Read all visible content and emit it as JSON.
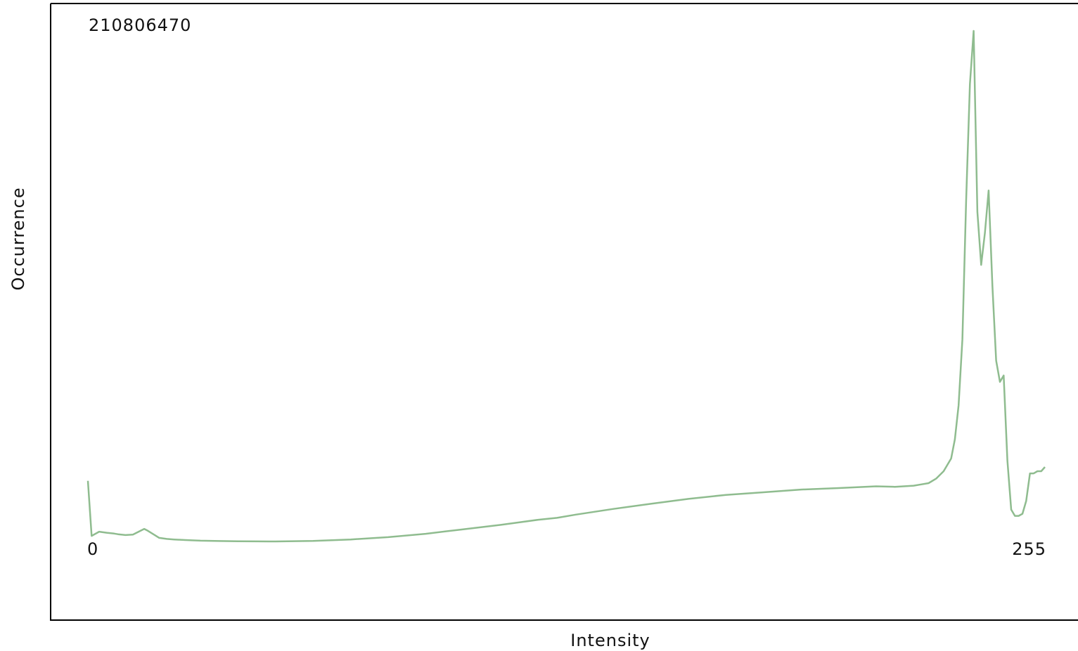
{
  "chart_data": {
    "type": "line",
    "xlabel": "Intensity",
    "ylabel": "Occurrence",
    "y_max_label": "210806470",
    "x_min_label": "0",
    "x_max_label": "255",
    "xlim": [
      0,
      255
    ],
    "ylim": [
      0,
      210806470
    ],
    "grid": false,
    "line_color": "#8fbc8f",
    "series": [
      {
        "x": [
          0,
          1,
          3,
          5,
          7,
          8,
          10,
          12,
          15,
          16,
          19,
          21,
          23,
          24,
          26,
          30,
          35,
          40,
          45,
          50,
          60,
          70,
          80,
          90,
          100,
          110,
          115,
          120,
          125,
          130,
          140,
          150,
          160,
          170,
          180,
          190,
          200,
          210,
          215,
          220,
          222,
          224,
          226,
          228,
          230,
          231,
          232,
          233,
          234,
          235,
          236,
          237,
          238,
          239,
          240,
          241,
          242,
          243,
          244,
          245,
          246,
          247,
          248,
          249,
          250,
          251,
          252,
          253,
          254,
          255
        ],
        "y": [
          28500000,
          2600000,
          4600000,
          4100000,
          3700000,
          3400000,
          3000000,
          3200000,
          5900000,
          5000000,
          1700000,
          1200000,
          930000,
          820000,
          660000,
          370000,
          210000,
          80000,
          25000,
          5000,
          280000,
          930000,
          2000000,
          3600000,
          5700000,
          7800000,
          9000000,
          10200000,
          11100000,
          12600000,
          15300000,
          17700000,
          20000000,
          21900000,
          23100000,
          24400000,
          25100000,
          25900000,
          25700000,
          26200000,
          26800000,
          27400000,
          29500000,
          33000000,
          39000000,
          48000000,
          64000000,
          95000000,
          160000000,
          215000000,
          240000000,
          155000000,
          130000000,
          145000000,
          165000000,
          120000000,
          85000000,
          75000000,
          78000000,
          38000000,
          15000000,
          12000000,
          12000000,
          13000000,
          19000000,
          32000000,
          32000000,
          33000000,
          33000000,
          35000000
        ]
      }
    ]
  }
}
